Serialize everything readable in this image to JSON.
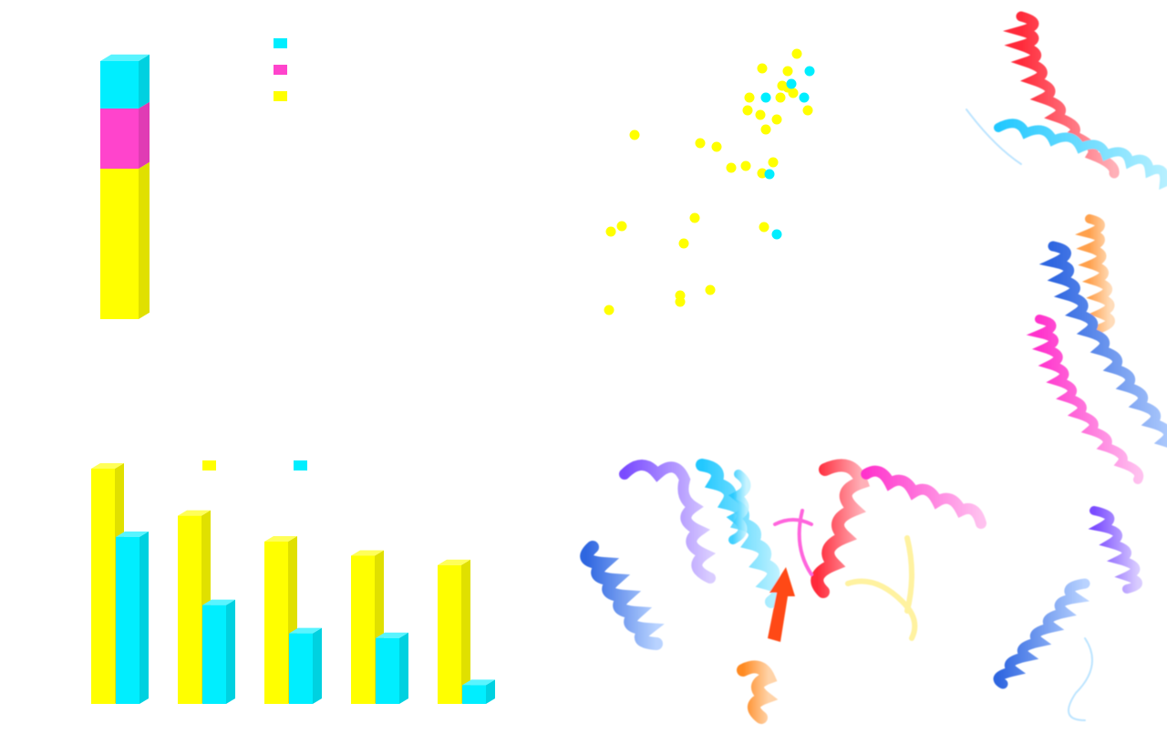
{
  "colors": {
    "cyan": "#00eeff",
    "magenta": "#ff44cc",
    "yellow": "#ffff00",
    "blue": "#2f7be0",
    "red": "#ff3344",
    "orange": "#ff7a1a"
  },
  "chart_data": [
    {
      "type": "bar",
      "stacked": true,
      "categories": [
        ""
      ],
      "series": [
        {
          "color": "#ffff00",
          "values": [
            165
          ]
        },
        {
          "color": "#ff44cc",
          "values": [
            66
          ]
        },
        {
          "color": "#00eeff",
          "values": [
            52
          ]
        }
      ],
      "legend": {
        "position": "top-right",
        "entries": 3
      },
      "grid": false
    },
    {
      "type": "scatter",
      "series": [
        {
          "color": "#ffff00",
          "points": [
            [
              874,
              59
            ],
            [
              836,
              75
            ],
            [
              864,
              78
            ],
            [
              858,
              94
            ],
            [
              870,
              102
            ],
            [
              822,
              107
            ],
            [
              856,
              107
            ],
            [
              864,
              96
            ],
            [
              820,
              121
            ],
            [
              834,
              126
            ],
            [
              852,
              131
            ],
            [
              840,
              142
            ],
            [
              886,
              121
            ],
            [
              696,
              148
            ],
            [
              768,
              157
            ],
            [
              786,
              161
            ],
            [
              802,
              184
            ],
            [
              818,
              182
            ],
            [
              848,
              178
            ],
            [
              836,
              190
            ],
            [
              682,
              248
            ],
            [
              670,
              254
            ],
            [
              762,
              239
            ],
            [
              750,
              267
            ],
            [
              838,
              249
            ],
            [
              779,
              318
            ],
            [
              746,
              324
            ],
            [
              746,
              331
            ],
            [
              668,
              340
            ]
          ]
        },
        {
          "color": "#00eeff",
          "points": [
            [
              888,
              78
            ],
            [
              868,
              92
            ],
            [
              840,
              107
            ],
            [
              882,
              107
            ],
            [
              844,
              191
            ],
            [
              852,
              257
            ]
          ]
        }
      ],
      "grid": false
    },
    {
      "type": "bar",
      "categories": [
        "",
        "",
        "",
        "",
        ""
      ],
      "series": [
        {
          "color": "#ffff00",
          "values": [
            100,
            80,
            69,
            63,
            59
          ]
        },
        {
          "color": "#00eeff",
          "values": [
            71,
            42,
            30,
            28,
            8
          ]
        }
      ],
      "legend": {
        "position": "top",
        "entries": 2
      },
      "grid": false
    }
  ]
}
